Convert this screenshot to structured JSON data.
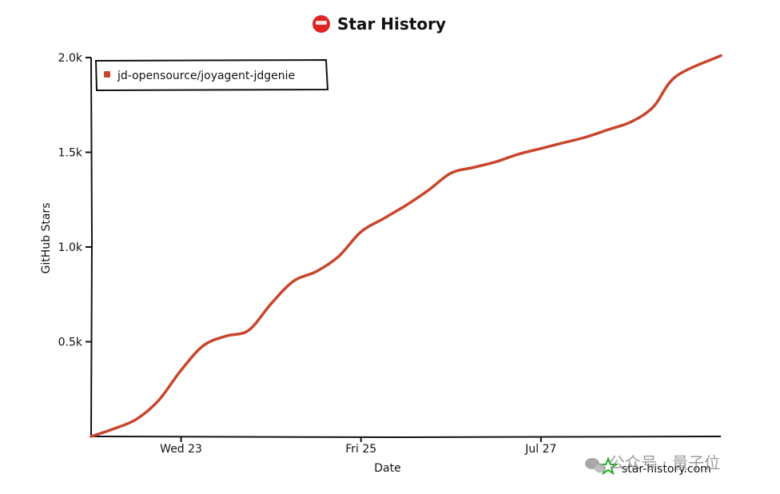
{
  "chart_data": {
    "type": "line",
    "title": "Star History",
    "xlabel": "Date",
    "ylabel": "GitHub Stars",
    "x_ticks": [
      "Wed 23",
      "Fri 25",
      "Jul 27"
    ],
    "y_ticks": [
      "0.5k",
      "1.0k",
      "1.5k",
      "2.0k"
    ],
    "ylim": [
      0,
      2000
    ],
    "legend_position": "top-left",
    "series": [
      {
        "name": "jd-opensource/joyagent-jdgenie",
        "color": "#c8462c",
        "x": [
          "2025-07-22T00:00",
          "2025-07-22T06:00",
          "2025-07-22T12:00",
          "2025-07-22T18:00",
          "2025-07-23T00:00",
          "2025-07-23T06:00",
          "2025-07-23T12:00",
          "2025-07-23T18:00",
          "2025-07-24T00:00",
          "2025-07-24T06:00",
          "2025-07-24T12:00",
          "2025-07-24T18:00",
          "2025-07-25T00:00",
          "2025-07-25T06:00",
          "2025-07-25T12:00",
          "2025-07-25T18:00",
          "2025-07-26T00:00",
          "2025-07-26T06:00",
          "2025-07-26T12:00",
          "2025-07-26T18:00",
          "2025-07-27T00:00",
          "2025-07-27T06:00",
          "2025-07-27T12:00",
          "2025-07-27T18:00",
          "2025-07-28T00:00",
          "2025-07-28T06:00",
          "2025-07-28T12:00",
          "2025-07-29T00:00"
        ],
        "values": [
          0,
          40,
          90,
          190,
          350,
          480,
          530,
          560,
          700,
          820,
          870,
          950,
          1080,
          1150,
          1220,
          1300,
          1390,
          1420,
          1450,
          1490,
          1520,
          1550,
          1580,
          1620,
          1660,
          1740,
          1900,
          2010
        ]
      }
    ],
    "x_range": [
      "2025-07-22T00:00",
      "2025-07-29T00:00"
    ],
    "x_tick_values": [
      "2025-07-23T00:00",
      "2025-07-25T00:00",
      "2025-07-27T00:00"
    ]
  },
  "credit": {
    "text": "star-history.com",
    "icon": "star-icon"
  },
  "watermark": {
    "text": "公众号 · 量子位",
    "icon": "wechat-icon"
  },
  "title_icon": "logo-icon",
  "colors": {
    "line": "#c8462c",
    "logo": "#e02424",
    "star": "#22aa22"
  }
}
